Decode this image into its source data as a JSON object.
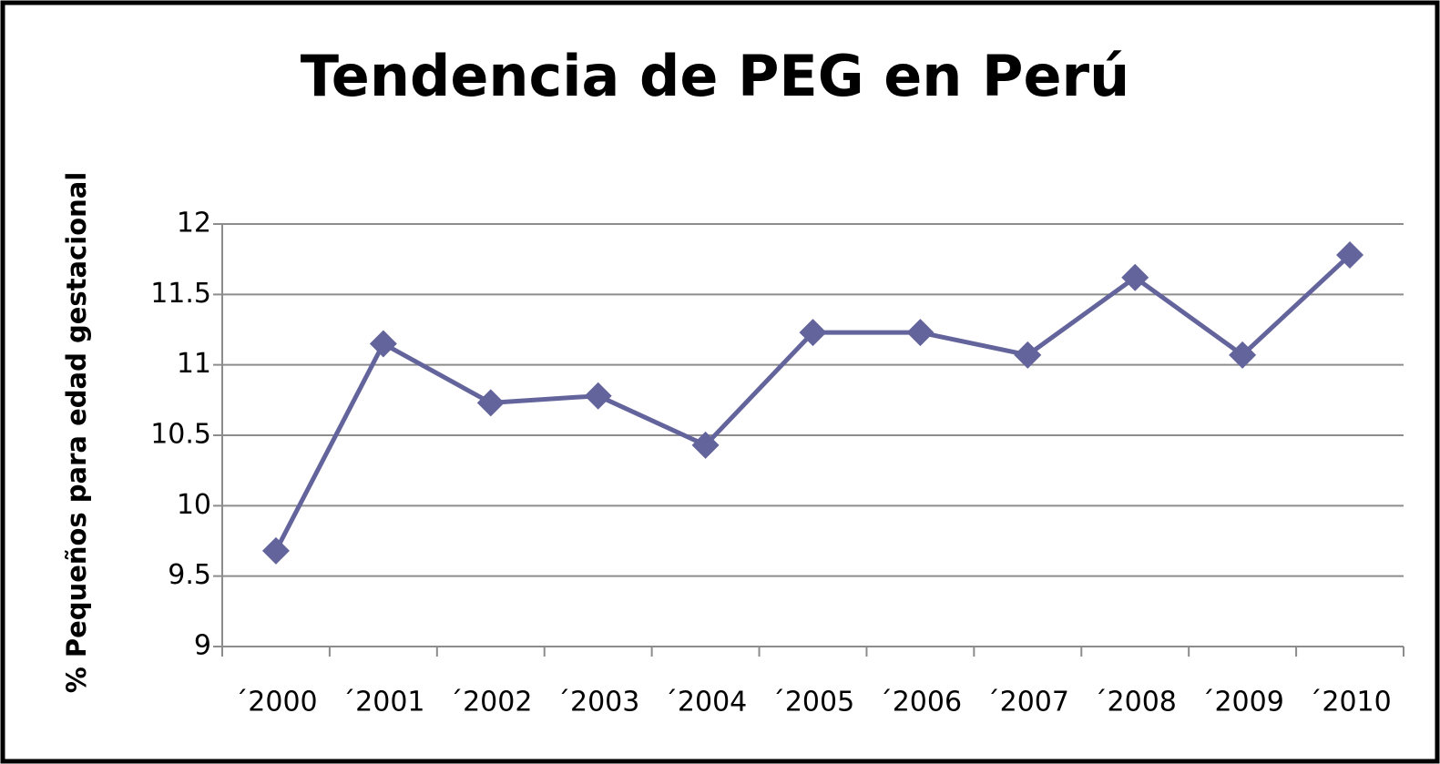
{
  "chart_data": {
    "type": "line",
    "title": "Tendencia de PEG en Perú",
    "y_label": "% Pequeños para edad gestacional",
    "categories": [
      "´2000",
      "´2001",
      "´2002",
      "´2003",
      "´2004",
      "´2005",
      "´2006",
      "´2007",
      "´2008",
      "´2009",
      "´2010"
    ],
    "series": [
      {
        "name": "PEG",
        "color": "#64649c",
        "values": [
          9.68,
          11.15,
          10.73,
          10.78,
          10.43,
          11.23,
          11.23,
          11.07,
          11.62,
          11.07,
          11.78
        ]
      }
    ],
    "ylim": [
      9,
      12
    ],
    "yticks": [
      9,
      9.5,
      10,
      10.5,
      11,
      11.5,
      12
    ],
    "grid": true
  }
}
